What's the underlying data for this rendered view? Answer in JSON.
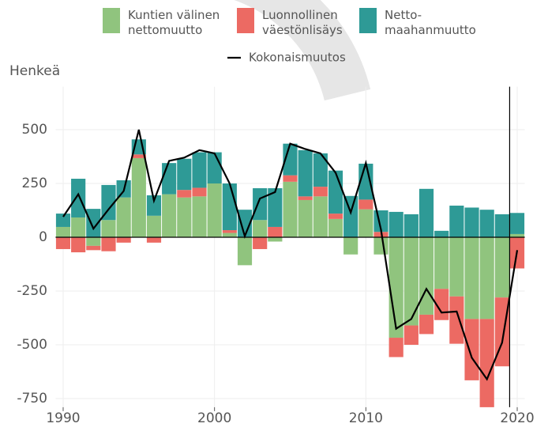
{
  "chart_data": {
    "type": "stacked-bar-line",
    "y_label": "Henkeä",
    "x": [
      1990,
      1991,
      1992,
      1993,
      1994,
      1995,
      1996,
      1997,
      1998,
      1999,
      2000,
      2001,
      2002,
      2003,
      2004,
      2005,
      2006,
      2007,
      2008,
      2009,
      2010,
      2011,
      2012,
      2013,
      2014,
      2015,
      2016,
      2017,
      2018,
      2019,
      2020
    ],
    "series": [
      {
        "name": "Kuntien välinen\nnettomuutto",
        "color": "#90c47e",
        "kind": "bar",
        "values": [
          48,
          92,
          -40,
          80,
          185,
          368,
          100,
          200,
          185,
          190,
          250,
          20,
          -130,
          80,
          -20,
          258,
          173,
          190,
          85,
          -80,
          130,
          -80,
          -467,
          -410,
          -360,
          -240,
          -275,
          -380,
          -380,
          -280,
          15
        ]
      },
      {
        "name": "Luonnollinen\nväestönlisäys",
        "color": "#ec6a63",
        "kind": "bar",
        "values": [
          -55,
          -70,
          -20,
          -65,
          -25,
          17,
          -25,
          0,
          35,
          40,
          0,
          13,
          0,
          -55,
          48,
          30,
          17,
          45,
          25,
          0,
          45,
          25,
          -90,
          -90,
          -90,
          -145,
          -220,
          -285,
          -410,
          -320,
          -145
        ]
      },
      {
        "name": "Netto-\nmaahanmuutto",
        "color": "#2e9a96",
        "kind": "bar",
        "values": [
          62,
          180,
          132,
          163,
          80,
          70,
          95,
          145,
          145,
          165,
          145,
          217,
          128,
          148,
          180,
          147,
          215,
          155,
          200,
          192,
          167,
          100,
          118,
          107,
          225,
          30,
          147,
          138,
          128,
          107,
          98
        ]
      },
      {
        "name": "Kokonaismuutos",
        "color": "#000000",
        "kind": "line",
        "values": [
          95,
          200,
          40,
          130,
          215,
          500,
          170,
          355,
          370,
          405,
          390,
          250,
          5,
          180,
          210,
          435,
          410,
          390,
          300,
          115,
          345,
          35,
          -425,
          -380,
          -240,
          -350,
          -345,
          -560,
          -660,
          -490,
          -60
        ]
      }
    ],
    "xlim": [
      1989.5,
      2020.5
    ],
    "xticks": [
      1990,
      2000,
      2010,
      2020
    ],
    "ylim": [
      -790,
      700
    ],
    "yticks": [
      -750,
      -500,
      -250,
      0,
      250,
      500
    ],
    "vline": 2019.5,
    "grid": true
  }
}
